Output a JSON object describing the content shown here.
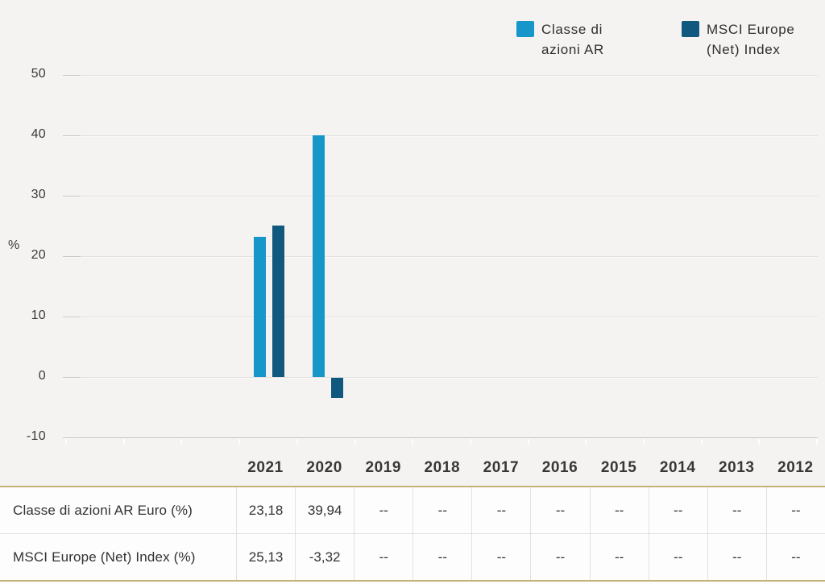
{
  "chart_data": {
    "type": "bar",
    "title": "",
    "categories": [
      "2021",
      "2020",
      "2019",
      "2018",
      "2017",
      "2016",
      "2015",
      "2014",
      "2013",
      "2012"
    ],
    "series": [
      {
        "name": "Classe di azioni AR",
        "color": "#1696c9",
        "values": [
          23.18,
          39.94,
          null,
          null,
          null,
          null,
          null,
          null,
          null,
          null
        ]
      },
      {
        "name": "MSCI Europe (Net) Index",
        "color": "#11587e",
        "values": [
          25.13,
          -3.32,
          null,
          null,
          null,
          null,
          null,
          null,
          null,
          null
        ]
      }
    ],
    "xlabel": "",
    "ylabel": "%",
    "ylim": [
      -10,
      50
    ],
    "yticks": [
      50,
      40,
      30,
      20,
      10,
      0,
      -10
    ],
    "grid": true,
    "legend_position": "top-right"
  },
  "table": {
    "columns": [
      "2021",
      "2020",
      "2019",
      "2018",
      "2017",
      "2016",
      "2015",
      "2014",
      "2013",
      "2012"
    ],
    "rows": [
      {
        "label": "Classe di azioni AR Euro (%)",
        "values": [
          "23,18",
          "39,94",
          "--",
          "--",
          "--",
          "--",
          "--",
          "--",
          "--",
          "--"
        ]
      },
      {
        "label": "MSCI Europe (Net) Index (%)",
        "values": [
          "25,13",
          "-3,32",
          "--",
          "--",
          "--",
          "--",
          "--",
          "--",
          "--",
          "--"
        ]
      }
    ]
  },
  "colors": {
    "background": "#f4f3f1",
    "series_light": "#1696c9",
    "series_dark": "#11587e",
    "gold_border": "#c4b276",
    "grid_line": "#e3e1df",
    "table_background": "#fdfdfd",
    "text": "#333231"
  }
}
